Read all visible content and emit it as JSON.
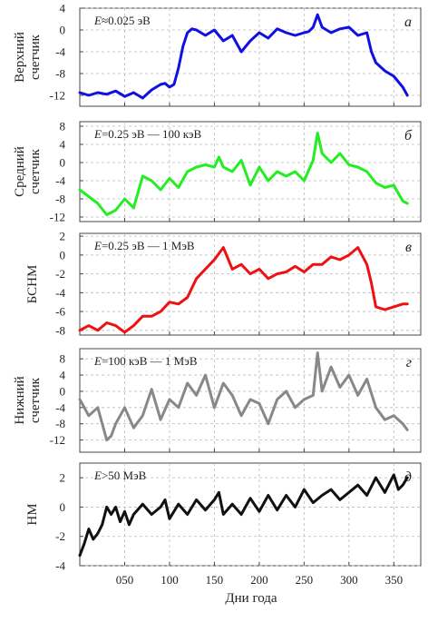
{
  "figure": {
    "xlabel": "Дни года",
    "x_ticks": [
      "050",
      "100",
      "150",
      "200",
      "250",
      "300",
      "350"
    ],
    "x_tick_values": [
      50,
      100,
      150,
      200,
      250,
      300,
      350
    ],
    "xlim": [
      0,
      380
    ]
  },
  "chart_data": [
    {
      "type": "line",
      "panel_letter": "а",
      "ylabel_lines": [
        "Верхний",
        "счетчик"
      ],
      "annotation_var": "E",
      "annotation_rest": "≈0.025 эВ",
      "color": "#1010e0",
      "ylim": [
        -14,
        4
      ],
      "y_ticks": [
        4,
        0,
        -4,
        -8,
        -12
      ],
      "grid": true,
      "x": [
        0,
        10,
        20,
        30,
        40,
        50,
        60,
        70,
        80,
        90,
        95,
        100,
        105,
        110,
        115,
        120,
        125,
        130,
        140,
        150,
        160,
        170,
        180,
        190,
        200,
        210,
        220,
        230,
        240,
        250,
        255,
        260,
        265,
        270,
        280,
        290,
        300,
        310,
        320,
        325,
        330,
        340,
        350,
        360,
        365
      ],
      "y": [
        -11.5,
        -12,
        -11.5,
        -11.8,
        -11.2,
        -12.2,
        -11.5,
        -12.5,
        -11,
        -10,
        -9.8,
        -10.5,
        -10,
        -7,
        -3,
        -0.5,
        0.2,
        0,
        -1,
        0,
        -2,
        -1,
        -4,
        -2,
        -0.5,
        -1.5,
        0.2,
        -0.5,
        -1,
        -0.5,
        -0.3,
        0.5,
        2.8,
        0.5,
        -0.5,
        0.2,
        0.5,
        -1,
        -0.5,
        -4,
        -6,
        -7.5,
        -8.5,
        -10.5,
        -12
      ]
    },
    {
      "type": "line",
      "panel_letter": "б",
      "ylabel_lines": [
        "Средний",
        "счетчик"
      ],
      "annotation_var": "E",
      "annotation_rest": "=0.25 эВ — 100 кэВ",
      "color": "#22ee22",
      "ylim": [
        -13,
        9
      ],
      "y_ticks": [
        8,
        4,
        0,
        -4,
        -8,
        -12
      ],
      "grid": true,
      "x": [
        0,
        10,
        20,
        30,
        40,
        50,
        60,
        70,
        80,
        90,
        100,
        110,
        120,
        130,
        140,
        150,
        155,
        160,
        170,
        180,
        190,
        200,
        210,
        220,
        230,
        240,
        250,
        260,
        265,
        270,
        280,
        290,
        300,
        310,
        320,
        330,
        340,
        350,
        360,
        365
      ],
      "y": [
        -6,
        -7.5,
        -9,
        -11.5,
        -10.5,
        -8,
        -10,
        -3,
        -4,
        -6,
        -3.5,
        -5.5,
        -2,
        -1,
        -0.5,
        -1,
        1.2,
        -1,
        -2,
        0.5,
        -5,
        -1,
        -4,
        -2,
        -3,
        -2,
        -4,
        0.5,
        6.5,
        2,
        0,
        2,
        -0.5,
        -1,
        -2,
        -4.5,
        -5.5,
        -5,
        -8.5,
        -9
      ]
    },
    {
      "type": "line",
      "panel_letter": "в",
      "ylabel_lines": [
        "БСНМ"
      ],
      "annotation_var": "E",
      "annotation_rest": "=0.25 эВ — 1 МэВ",
      "color": "#ee1111",
      "ylim": [
        -8.5,
        2.3
      ],
      "y_ticks": [
        2,
        0,
        -2,
        -4,
        -6,
        -8
      ],
      "grid": true,
      "x": [
        0,
        10,
        20,
        30,
        40,
        50,
        60,
        70,
        80,
        90,
        100,
        110,
        120,
        130,
        140,
        150,
        160,
        170,
        180,
        190,
        200,
        210,
        220,
        230,
        240,
        250,
        260,
        270,
        280,
        290,
        300,
        310,
        320,
        325,
        330,
        340,
        350,
        360,
        365
      ],
      "y": [
        -8,
        -7.5,
        -8,
        -7.2,
        -7.5,
        -8.2,
        -7.5,
        -6.5,
        -6.5,
        -6,
        -5,
        -5.2,
        -4.5,
        -2.5,
        -1.5,
        -0.5,
        0.8,
        -1.5,
        -1,
        -2,
        -1.5,
        -2.5,
        -2,
        -1.8,
        -1.2,
        -1.8,
        -1,
        -1,
        -0.2,
        -0.5,
        0,
        0.8,
        -1,
        -3,
        -5.5,
        -5.8,
        -5.5,
        -5.2,
        -5.2
      ]
    },
    {
      "type": "line",
      "panel_letter": "г",
      "ylabel_lines": [
        "Нижний",
        "счетчик"
      ],
      "annotation_var": "E",
      "annotation_rest": "=100 кэВ — 1 МэВ",
      "color": "#888888",
      "ylim": [
        -15,
        10.5
      ],
      "y_ticks": [
        8,
        4,
        0,
        -4,
        -8,
        -12
      ],
      "grid": true,
      "x": [
        0,
        10,
        20,
        30,
        35,
        40,
        50,
        60,
        70,
        80,
        90,
        100,
        110,
        120,
        130,
        140,
        150,
        160,
        170,
        180,
        190,
        200,
        210,
        220,
        230,
        240,
        250,
        260,
        265,
        270,
        280,
        290,
        300,
        310,
        320,
        330,
        340,
        350,
        360,
        365
      ],
      "y": [
        -2,
        -6,
        -4,
        -12,
        -11,
        -8,
        -4,
        -9,
        -6,
        0.5,
        -7,
        -2,
        -4,
        2,
        -1,
        4,
        -4,
        2,
        -1,
        -6,
        -2,
        -3,
        -8,
        -2,
        0,
        -4,
        -2,
        -1,
        9.5,
        0,
        6,
        1,
        4,
        -1,
        3,
        -4,
        -7,
        -6,
        -8,
        -9.5
      ]
    },
    {
      "type": "line",
      "panel_letter": "д",
      "ylabel_lines": [
        "НМ"
      ],
      "annotation_var": "E",
      "annotation_rest": ">50 МэВ",
      "color": "#111111",
      "ylim": [
        -4,
        3
      ],
      "y_ticks": [
        2,
        0,
        -2,
        -4
      ],
      "grid": true,
      "x": [
        0,
        5,
        10,
        15,
        20,
        25,
        30,
        35,
        40,
        45,
        50,
        55,
        60,
        70,
        80,
        90,
        95,
        100,
        110,
        120,
        130,
        140,
        150,
        155,
        160,
        170,
        180,
        190,
        200,
        210,
        220,
        230,
        240,
        250,
        260,
        270,
        280,
        290,
        300,
        310,
        320,
        330,
        340,
        350,
        355,
        360,
        365
      ],
      "y": [
        -3.3,
        -2.5,
        -1.5,
        -2.2,
        -1.8,
        -1.2,
        0,
        -0.5,
        0,
        -1,
        -0.3,
        -1.2,
        -0.5,
        0.2,
        -0.5,
        0,
        0.5,
        -0.8,
        0.2,
        -0.5,
        0.5,
        -0.2,
        0.5,
        1,
        -0.5,
        0.2,
        -0.5,
        0.6,
        -0.3,
        0.8,
        -0.2,
        0.8,
        0,
        1.2,
        0.3,
        0.8,
        1.2,
        0.5,
        1,
        1.5,
        0.8,
        2,
        1,
        2.2,
        1.2,
        1.5,
        2
      ]
    }
  ]
}
